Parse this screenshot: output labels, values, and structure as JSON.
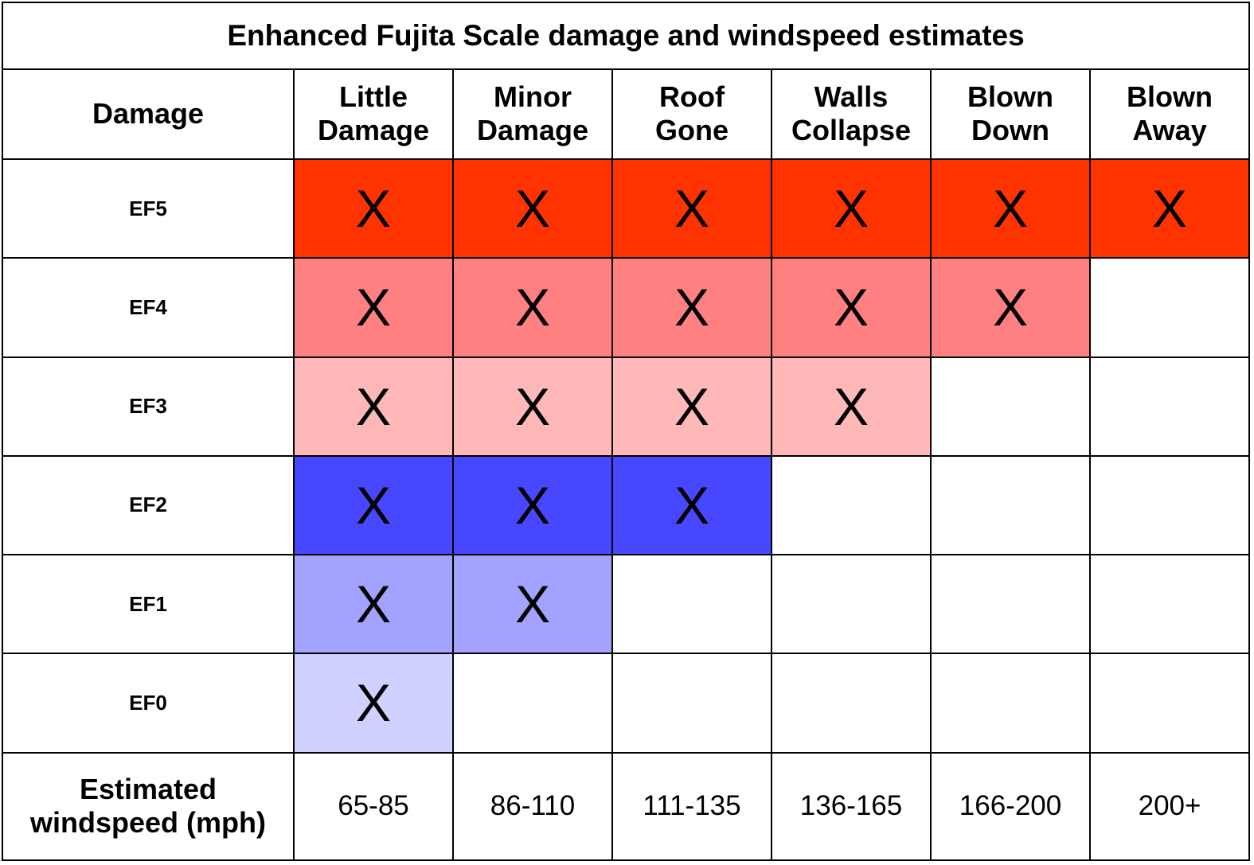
{
  "chart_data": {
    "type": "table",
    "title": "Enhanced Fujita Scale damage and windspeed estimates",
    "row_header_label": "Damage",
    "columns": [
      "Little\nDamage",
      "Minor\nDamage",
      "Roof\nGone",
      "Walls\nCollapse",
      "Blown\nDown",
      "Blown\nAway"
    ],
    "rows": [
      {
        "rating": "EF5",
        "color": "#ff3300",
        "cells": [
          "X",
          "X",
          "X",
          "X",
          "X",
          "X"
        ]
      },
      {
        "rating": "EF4",
        "color": "#ff8080",
        "cells": [
          "X",
          "X",
          "X",
          "X",
          "X",
          ""
        ]
      },
      {
        "rating": "EF3",
        "color": "#ffb8b8",
        "cells": [
          "X",
          "X",
          "X",
          "X",
          "",
          ""
        ]
      },
      {
        "rating": "EF2",
        "color": "#4747ff",
        "cells": [
          "X",
          "X",
          "X",
          "",
          "",
          ""
        ]
      },
      {
        "rating": "EF1",
        "color": "#a3a3ff",
        "cells": [
          "X",
          "X",
          "",
          "",
          "",
          ""
        ]
      },
      {
        "rating": "EF0",
        "color": "#d1d1ff",
        "cells": [
          "X",
          "",
          "",
          "",
          "",
          ""
        ]
      }
    ],
    "windspeed_label": "Estimated\nwindspeed (mph)",
    "windspeeds": [
      "65-85",
      "86-110",
      "111-135",
      "136-165",
      "166-200",
      "200+"
    ]
  }
}
